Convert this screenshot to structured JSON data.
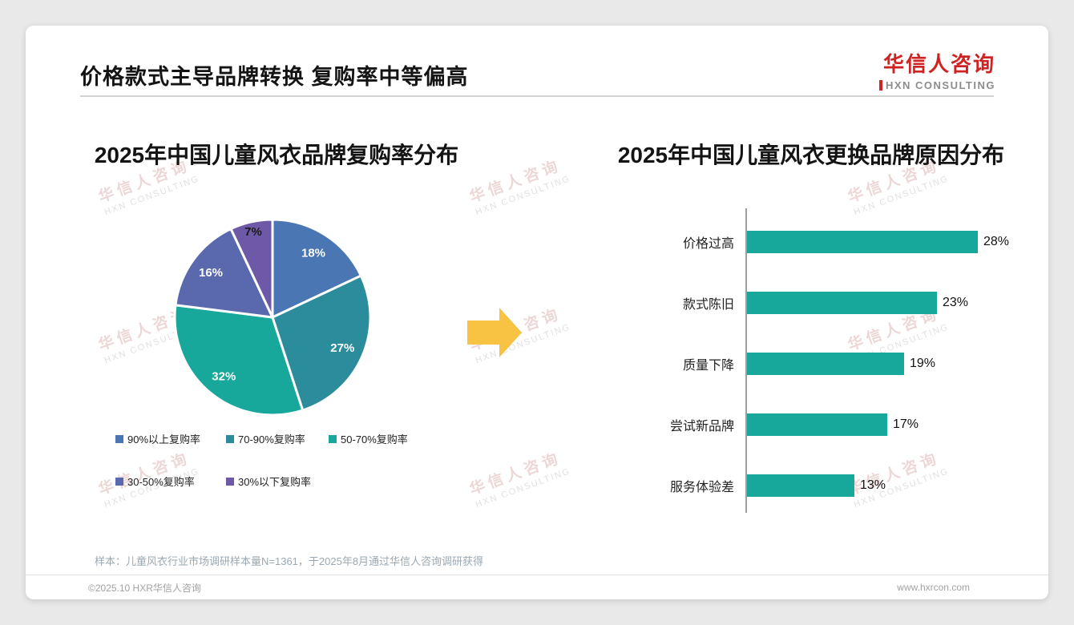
{
  "header": {
    "title": "价格款式主导品牌转换 复购率中等偏高"
  },
  "logo": {
    "name_cn": "华信人咨询",
    "name_en": "HXN CONSULTING"
  },
  "watermark": {
    "line1": "华信人咨询",
    "line2": "HXN CONSULTING"
  },
  "chart_data": [
    {
      "type": "pie",
      "title": "2025年中国儿童风衣品牌复购率分布",
      "value_suffix": "%",
      "legend_position": "bottom",
      "slices": [
        {
          "label": "90%以上复购率",
          "value": 18,
          "color": "#4a77b4",
          "label_color": "#ffffff"
        },
        {
          "label": "70-90%复购率",
          "value": 27,
          "color": "#2b8c9c",
          "label_color": "#ffffff"
        },
        {
          "label": "50-70%复购率",
          "value": 32,
          "color": "#18a89b",
          "label_color": "#ffffff"
        },
        {
          "label": "30-50%复购率",
          "value": 16,
          "color": "#5a68ae",
          "label_color": "#ffffff"
        },
        {
          "label": "30%以下复购率",
          "value": 7,
          "color": "#6e59a8",
          "label_color": "#1a1a1a"
        }
      ]
    },
    {
      "type": "bar",
      "orientation": "horizontal",
      "title": "2025年中国儿童风衣更换品牌原因分布",
      "categories": [
        "价格过高",
        "款式陈旧",
        "质量下降",
        "尝试新品牌",
        "服务体验差"
      ],
      "values": [
        28,
        23,
        19,
        17,
        13
      ],
      "value_suffix": "%",
      "bar_color": "#18a89b",
      "xlim": [
        0,
        30
      ],
      "grid": false
    }
  ],
  "arrow_color": "#f8c243",
  "footer": {
    "note": "样本：儿童风衣行业市场调研样本量N=1361，于2025年8月通过华信人咨询调研获得",
    "copyright": "©2025.10 HXR华信人咨询",
    "website": "www.hxrcon.com"
  }
}
